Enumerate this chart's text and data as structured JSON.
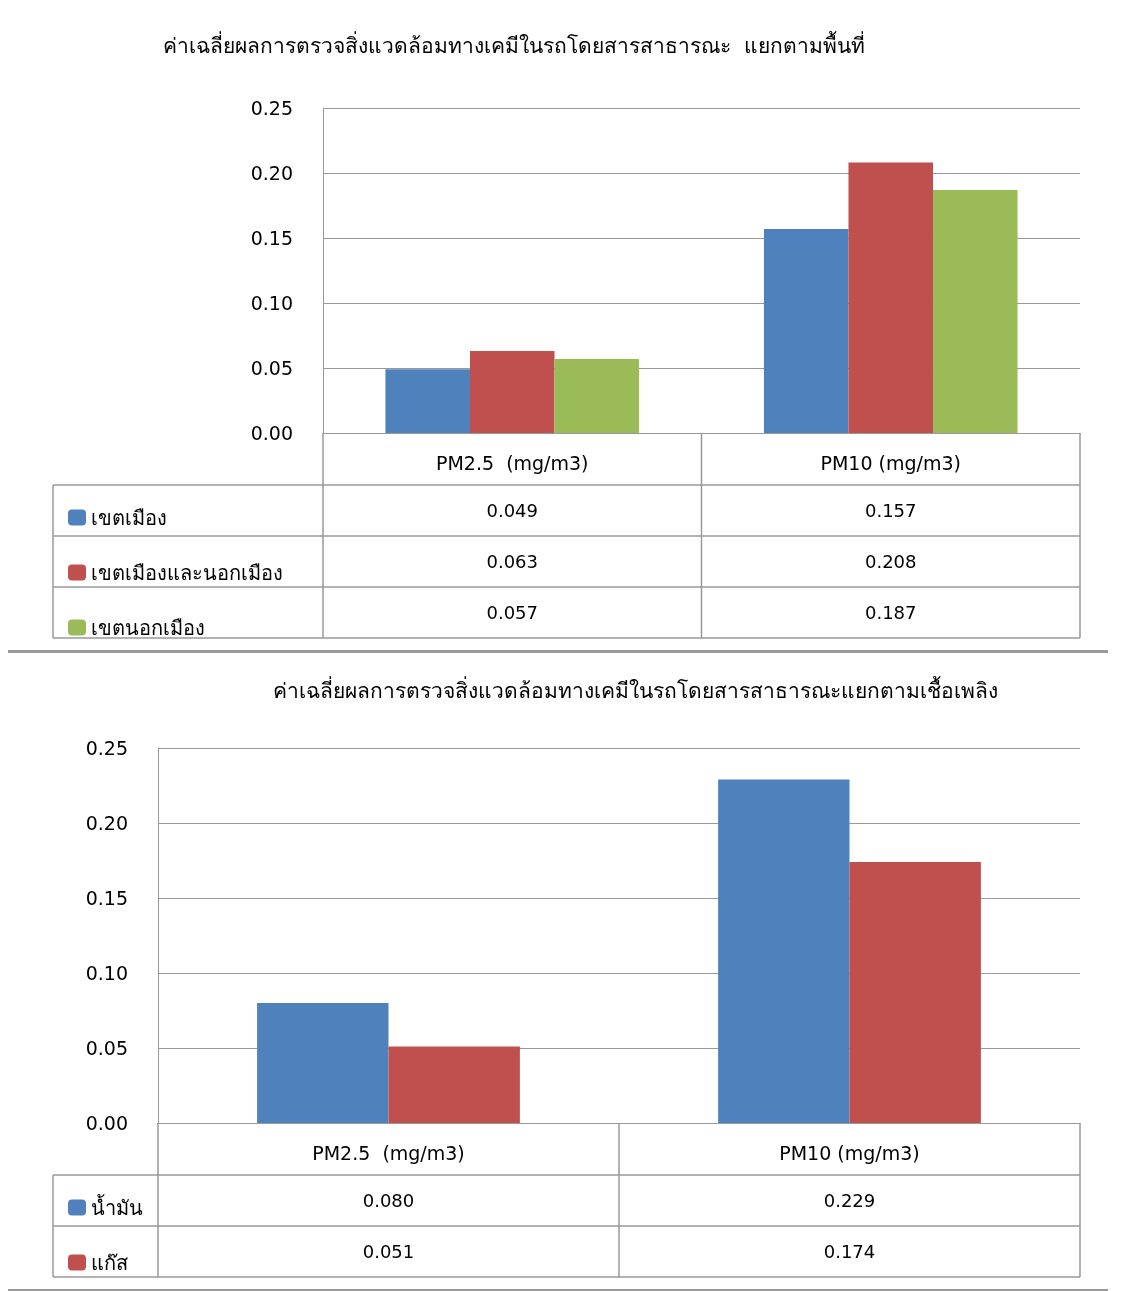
{
  "chart_data": [
    {
      "type": "bar",
      "title": "ค่าเฉลี่ยผลการตรวจสิ่งแวดล้อมทางเคมีในรถโดยสารสาธารณะ  แยกตามพื้นที่",
      "categories": [
        "PM2.5  (mg/m3)",
        "PM10 (mg/m3)"
      ],
      "series": [
        {
          "name": "เขตเมือง",
          "color": "#4f81bd",
          "values": [
            0.049,
            0.157
          ],
          "value_labels": [
            "0.049",
            "0.157"
          ]
        },
        {
          "name": "เขตเมืองและนอกเมือง",
          "color": "#c0504d",
          "values": [
            0.063,
            0.208
          ],
          "value_labels": [
            "0.063",
            "0.208"
          ]
        },
        {
          "name": "เขตนอกเมือง",
          "color": "#9bbb59",
          "values": [
            0.057,
            0.187
          ],
          "value_labels": [
            "0.057",
            "0.187"
          ]
        }
      ],
      "ylim": [
        0,
        0.25
      ],
      "yticks": [
        {
          "value": 0,
          "label": "0.00"
        },
        {
          "value": 0.05,
          "label": "0.05"
        },
        {
          "value": 0.1,
          "label": "0.10"
        },
        {
          "value": 0.15,
          "label": "0.15"
        },
        {
          "value": 0.2,
          "label": "0.20"
        },
        {
          "value": 0.25,
          "label": "0.25"
        }
      ],
      "grid": "y",
      "legend": "bottom"
    },
    {
      "type": "bar",
      "title": "ค่าเฉลี่ยผลการตรวจสิ่งแวดล้อมทางเคมีในรถโดยสารสาธารณะแยกตามเชื้อเพลิง",
      "categories": [
        "PM2.5  (mg/m3)",
        "PM10 (mg/m3)"
      ],
      "series": [
        {
          "name": "น้ำมัน",
          "color": "#4f81bd",
          "values": [
            0.08,
            0.229
          ],
          "value_labels": [
            "0.080",
            "0.229"
          ]
        },
        {
          "name": "แก๊ส",
          "color": "#c0504d",
          "values": [
            0.051,
            0.174
          ],
          "value_labels": [
            "0.051",
            "0.174"
          ]
        }
      ],
      "ylim": [
        0,
        0.25
      ],
      "yticks": [
        {
          "value": 0,
          "label": "0.00"
        },
        {
          "value": 0.05,
          "label": "0.05"
        },
        {
          "value": 0.1,
          "label": "0.10"
        },
        {
          "value": 0.15,
          "label": "0.15"
        },
        {
          "value": 0.2,
          "label": "0.20"
        },
        {
          "value": 0.25,
          "label": "0.25"
        }
      ],
      "grid": "y",
      "legend": "bottom"
    }
  ]
}
